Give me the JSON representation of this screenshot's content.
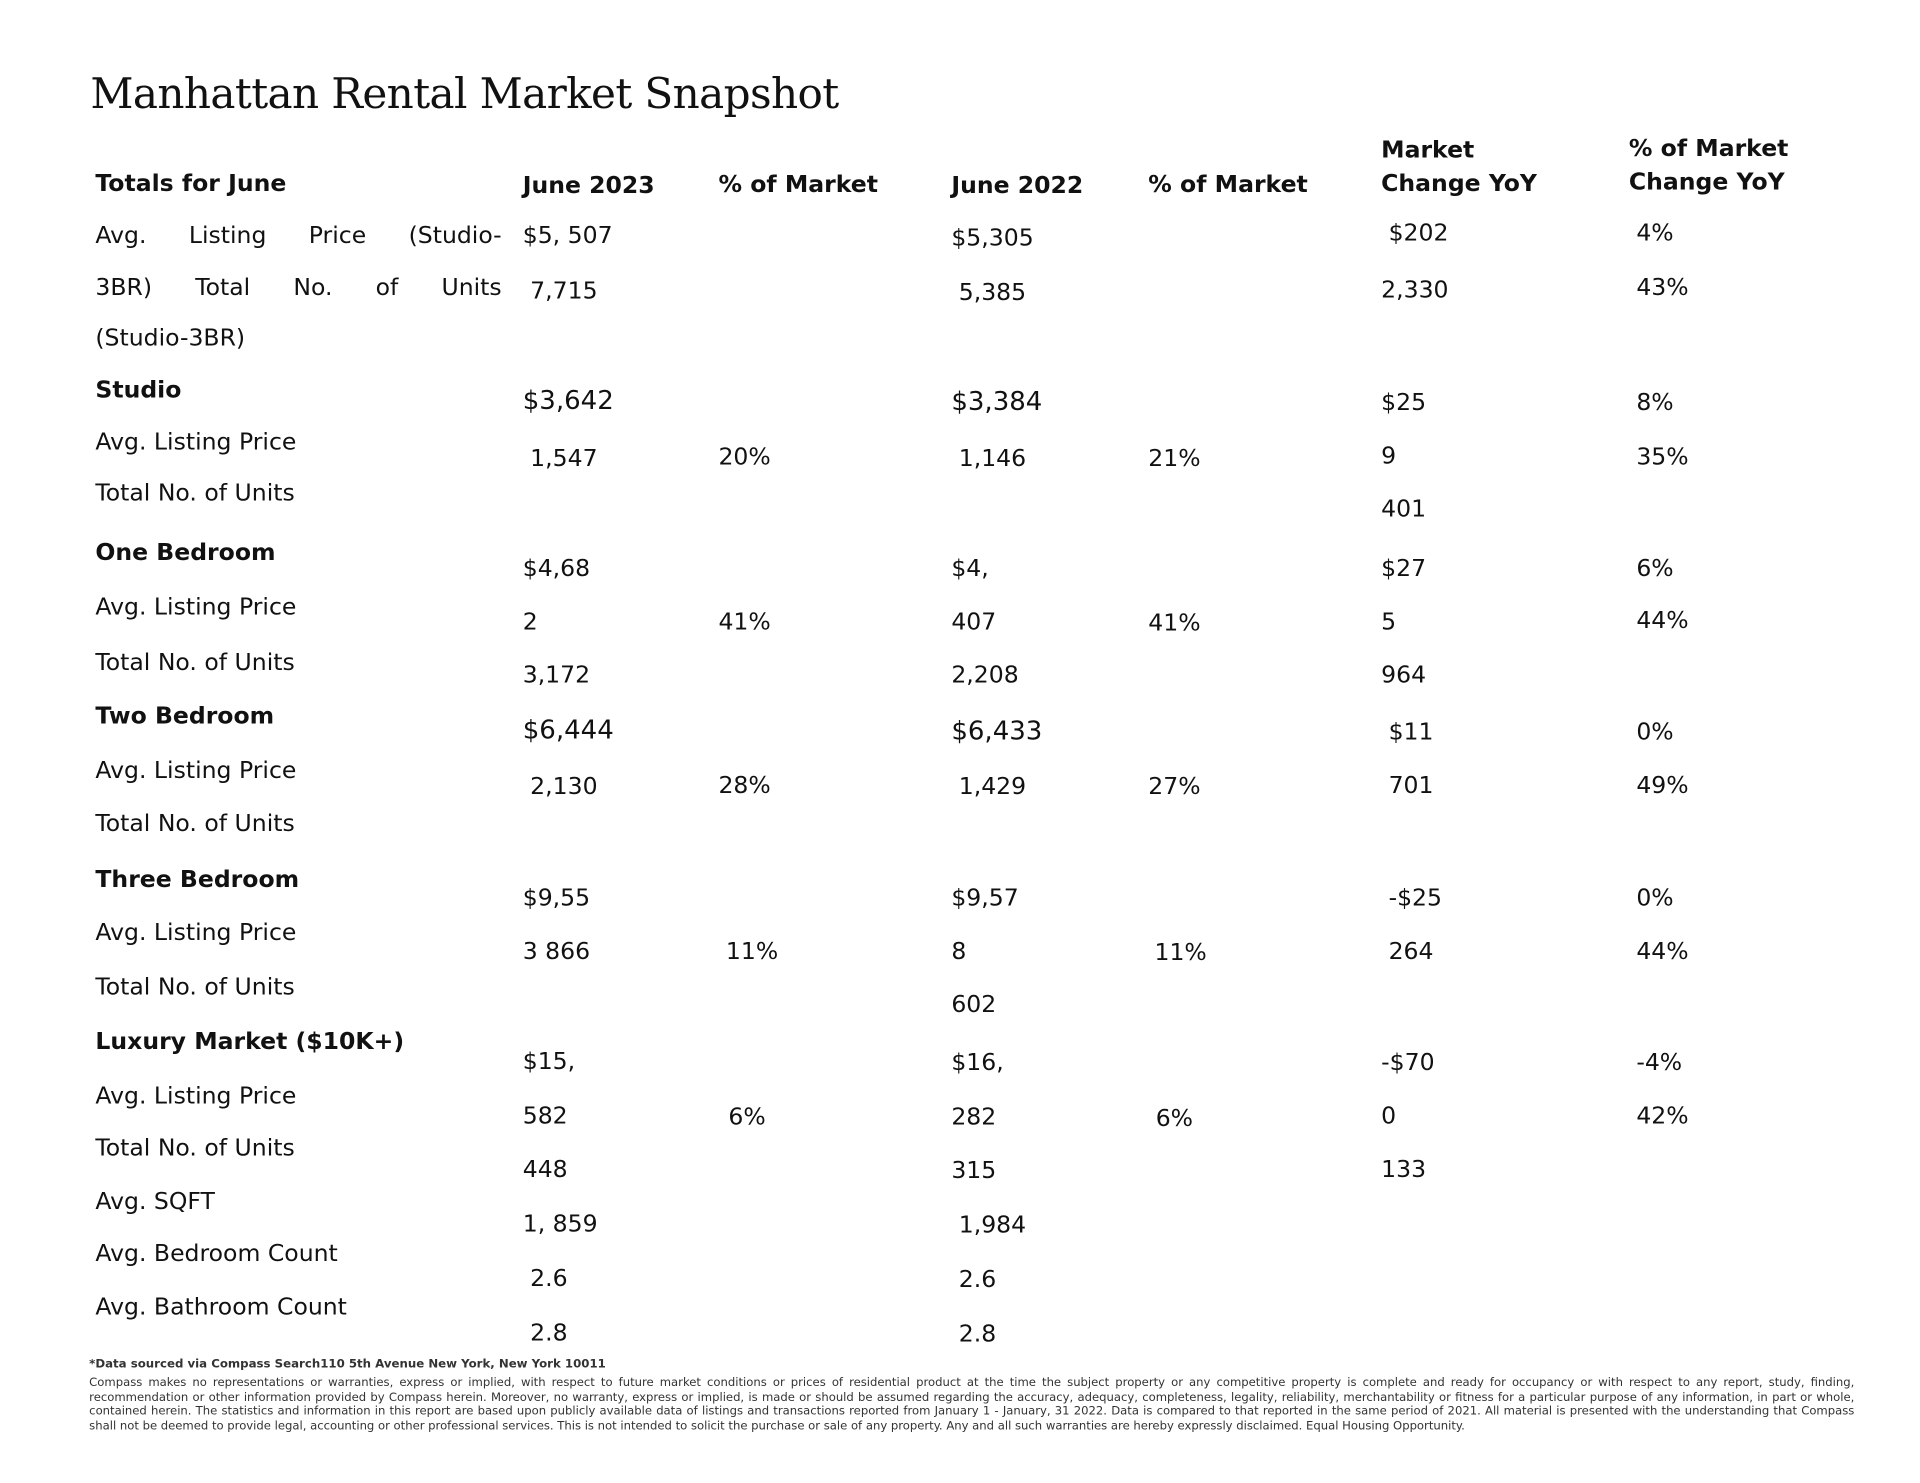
{
  "title": "Manhattan Rental Market Snapshot",
  "headers": {
    "label": "Totals for June",
    "june2023": "June 2023",
    "pct2023": "% of Market",
    "june2022": "June 2022",
    "pct2022": "% of Market",
    "change_l1": "Market",
    "change_l2": "Change YoY",
    "pctchange_l1": "% of Market",
    "pctchange_l2": "Change YoY"
  },
  "totals": {
    "label_lines": [
      "Avg. Listing Price (Studio-",
      "3BR) Total No. of Units",
      "(Studio-3BR)"
    ],
    "june2023": [
      "$5, 507",
      "7,715"
    ],
    "june2022": [
      "$5,305",
      "5,385"
    ],
    "change": [
      "$202",
      "2,330"
    ],
    "pct_change": [
      "4%",
      "43%"
    ]
  },
  "studio": {
    "heading": "Studio",
    "labels": [
      "Avg. Listing Price",
      "Total No. of Units"
    ],
    "june2023": [
      "$3,642",
      "1,547"
    ],
    "pct2023": "20%",
    "june2022": [
      "$3,384",
      "1,146"
    ],
    "pct2022": "21%",
    "change": [
      "$25",
      "9",
      "401"
    ],
    "pct_change": [
      "8%",
      "35%"
    ]
  },
  "one_bedroom": {
    "heading": "One Bedroom",
    "labels": [
      "Avg. Listing Price",
      "Total No. of Units"
    ],
    "june2023": [
      "$4,68",
      "2",
      "3,172"
    ],
    "pct2023": "41%",
    "june2022": [
      "$4,",
      "407",
      "2,208"
    ],
    "pct2022": "41%",
    "change": [
      "$27",
      "5",
      "964"
    ],
    "pct_change": [
      "6%",
      "44%"
    ]
  },
  "two_bedroom": {
    "heading": "Two Bedroom",
    "labels": [
      "Avg. Listing Price",
      "Total No. of Units"
    ],
    "june2023": [
      "$6,444",
      "2,130"
    ],
    "pct2023": "28%",
    "june2022": [
      "$6,433",
      "1,429"
    ],
    "pct2022": "27%",
    "change": [
      "$11",
      "701"
    ],
    "pct_change": [
      "0%",
      "49%"
    ]
  },
  "three_bedroom": {
    "heading": "Three Bedroom",
    "labels": [
      "Avg. Listing Price",
      "Total No. of Units"
    ],
    "june2023": [
      "$9,55",
      "3  866"
    ],
    "pct2023": "11%",
    "june2022": [
      "$9,57",
      "8",
      "602"
    ],
    "pct2022": "11%",
    "change": [
      "-$25",
      "264"
    ],
    "pct_change": [
      "0%",
      "44%"
    ]
  },
  "luxury": {
    "heading": "Luxury Market ($10K+)",
    "labels": [
      "Avg. Listing Price",
      "Total No. of Units",
      "Avg. SQFT",
      "Avg. Bedroom Count",
      "Avg. Bathroom Count"
    ],
    "june2023": [
      "$15,",
      "582",
      "448",
      "1, 859",
      "2.6",
      "2.8"
    ],
    "pct2023": "6%",
    "june2022": [
      "$16,",
      "282",
      "315",
      "1,984",
      "2.6",
      "2.8"
    ],
    "pct2022": "6%",
    "change": [
      "-$70",
      "0",
      "133"
    ],
    "pct_change": [
      "-4%",
      "42%"
    ]
  },
  "footer": {
    "source": "*Data sourced via Compass Search110 5th Avenue New York, New York 10011",
    "disclaimer": "Compass makes no representations or warranties, express or implied, with respect to future market conditions or prices of residential product at the time the subject property or any competitive property is complete and ready for occupancy or with respect to any report, study, finding, recommendation or other information provided by Compass herein. Moreover, no warranty, express or implied, is made or should be assumed regarding the accuracy, adequacy, completeness, legality, reliability, merchantability or fitness for a particular purpose of any information, in part or whole, contained herein. The statistics and information in this report are based upon publicly available data of listings and transactions reported from January 1 - January, 31 2022. Data is compared to that reported in the same period of 2021.  All material is presented with the understanding that Compass shall not be deemed to provide legal, accounting or other professional services. This is not intended to solicit the purchase or sale of any property. Any and all such warranties are hereby expressly disclaimed. Equal Housing Opportunity."
  }
}
